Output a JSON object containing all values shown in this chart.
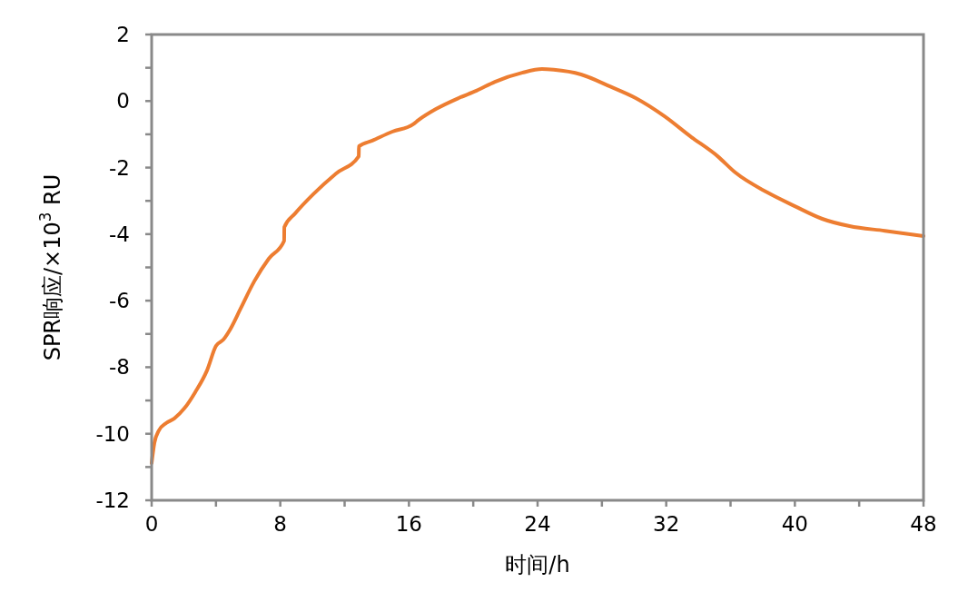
{
  "chart_data": {
    "type": "line",
    "xlabel": "时间/h",
    "ylabel": "SPR响应/×10$^{3}$ RU",
    "xlim": [
      0,
      48
    ],
    "ylim": [
      -12,
      2
    ],
    "xticks": [
      0,
      {
        "value": 4,
        "label": null
      },
      8,
      {
        "value": 12,
        "label": null
      },
      16,
      {
        "value": 20,
        "label": null
      },
      24,
      {
        "value": 28,
        "label": null
      },
      32,
      {
        "value": 36,
        "label": null
      },
      40,
      {
        "value": 44,
        "label": null
      },
      48
    ],
    "yticks": [
      -12,
      {
        "value": -11,
        "label": null
      },
      -10,
      {
        "value": -9,
        "label": null
      },
      -8,
      {
        "value": -7,
        "label": null
      },
      -6,
      {
        "value": -5,
        "label": null
      },
      -4,
      {
        "value": -3,
        "label": null
      },
      -2,
      {
        "value": -1,
        "label": null
      },
      0,
      {
        "value": 1,
        "label": null
      },
      2
    ],
    "grid": false,
    "marker": "none",
    "line_style": "solid",
    "series": [
      {
        "color": "#ed7d31",
        "x": [
          0,
          0.17,
          0.45,
          0.9,
          1.41,
          2.03,
          2.71,
          3.44,
          4.0,
          4.46,
          4.91,
          5.53,
          6.38,
          7.28,
          8.24,
          8.25,
          8.92,
          10.05,
          11.46,
          12.88,
          12.89,
          13.72,
          14.97,
          16.26,
          16.6,
          17.68,
          19.09,
          20.2,
          21.35,
          23.04,
          24.28,
          25.0,
          26.7,
          28.5,
          30.1,
          31.9,
          33.5,
          35.2,
          36.3,
          38.3,
          40.0,
          41.7,
          43.4,
          45.6,
          48
        ],
        "values": [
          -10.88,
          -10.28,
          -9.9,
          -9.68,
          -9.54,
          -9.24,
          -8.75,
          -8.1,
          -7.36,
          -7.17,
          -6.84,
          -6.24,
          -5.42,
          -4.74,
          -4.2,
          -3.79,
          -3.38,
          -2.8,
          -2.18,
          -1.66,
          -1.36,
          -1.19,
          -0.92,
          -0.7,
          -0.57,
          -0.24,
          0.09,
          0.31,
          0.58,
          0.85,
          0.96,
          0.94,
          0.8,
          0.44,
          0.09,
          -0.46,
          -1.06,
          -1.66,
          -2.15,
          -2.75,
          -3.16,
          -3.54,
          -3.76,
          -3.9,
          -4.06
        ]
      }
    ]
  }
}
